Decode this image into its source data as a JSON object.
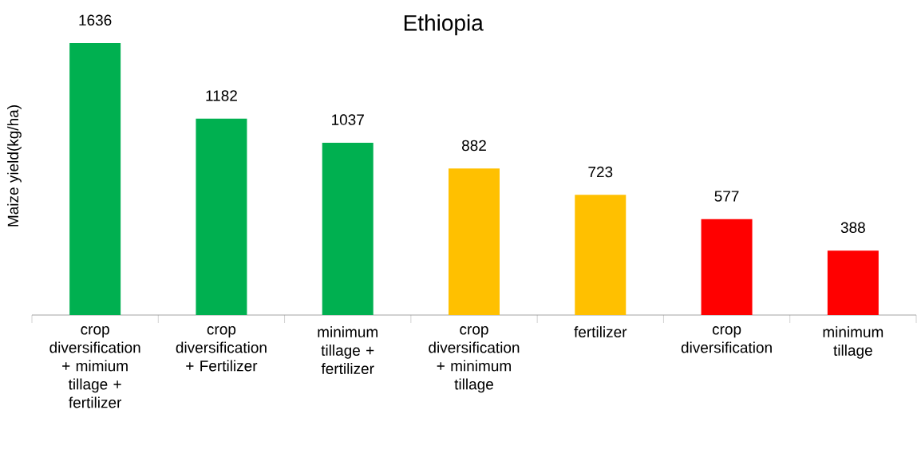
{
  "chart_data": {
    "type": "bar",
    "title": "Ethiopia",
    "ylabel": "Maize yield(kg/ha)",
    "categories": [
      "crop diversification + mimium tillage + fertilizer",
      "crop diversification +  Fertilizer",
      "minimum tillage + fertilizer",
      "crop diversification + minimum tillage",
      "fertilizer",
      "crop diversification",
      "minimum tillage"
    ],
    "values": [
      1636,
      1182,
      1037,
      882,
      723,
      577,
      388
    ],
    "colors": [
      "#00b050",
      "#00b050",
      "#00b050",
      "#ffc000",
      "#ffc000",
      "#ff0000",
      "#ff0000"
    ],
    "data_labels": true
  }
}
